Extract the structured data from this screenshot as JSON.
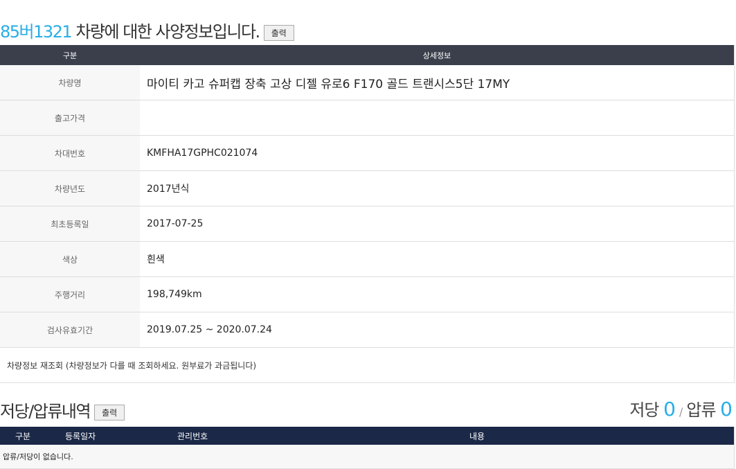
{
  "header": {
    "plate": "85버1321",
    "title_rest": " 차량에 대한 사양정보입니다.",
    "print_label": "출력"
  },
  "spec": {
    "col_label": "구분",
    "col_detail": "상세정보",
    "rows": [
      {
        "label": "차량명",
        "value": "마이티 카고 슈퍼캡 장축 고상 디젤 유로6 F170 골드 트랜시스5단 17MY"
      },
      {
        "label": "출고가격",
        "value": ""
      },
      {
        "label": "차대번호",
        "value": "KMFHA17GPHC021074"
      },
      {
        "label": "차량년도",
        "value": "2017년식"
      },
      {
        "label": "최초등록일",
        "value": "2017-07-25"
      },
      {
        "label": "색상",
        "value": "흰색"
      },
      {
        "label": "주행거리",
        "value": "198,749km"
      },
      {
        "label": "검사유효기간",
        "value": "2019.07.25 ~ 2020.07.24"
      }
    ],
    "note": "차량정보 재조회 (차량정보가 다를 때 조회하세요. 원부료가 과금됩니다)"
  },
  "lien": {
    "title": "저당/압류내역",
    "print_label": "출력",
    "mortgage_label": "저당",
    "mortgage_count": "0",
    "sep": "/",
    "seizure_label": "압류",
    "seizure_count": "0",
    "columns": [
      "구분",
      "등록일자",
      "관리번호",
      "내용"
    ],
    "empty": "압류/저당이 없습니다."
  }
}
